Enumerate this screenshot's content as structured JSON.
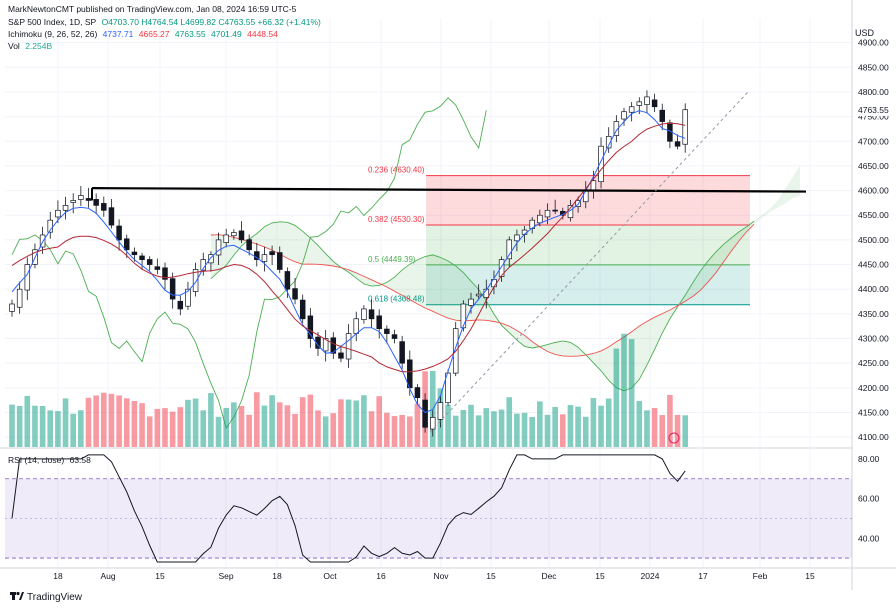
{
  "publisher": "MarkNewtonCMT published on TradingView.com, Jan 08, 2024 16:59 UTC-5",
  "legend": {
    "symbol": "S&P 500 Index, 1D, SP",
    "ohlc": "O4703.70 H4764.54 L4699.82 C4763.55 +66.32 (+1.41%)",
    "ichimoku_label": "Ichimoku (9, 26, 52, 26)",
    "ichimoku_values": [
      "4737.71",
      "4665.27",
      "4763.55",
      "4701.49",
      "4448.54"
    ],
    "vol_label": "Vol",
    "vol_value": "2.254B"
  },
  "currency": "USD",
  "last_price": "4763.55",
  "brand": "TradingView",
  "colors": {
    "up": "#089981",
    "down": "#f23645",
    "tenkan": "#2962ff",
    "kijun": "#b22833",
    "span_a": "#4caf50",
    "span_b": "#ef5350",
    "rsi": "#131722",
    "rsi_band": "#7e57c2"
  },
  "chart_data": [
    {
      "type": "candlestick",
      "title": "S&P 500 Index, 1D, SP",
      "y_ticks": [
        4100,
        4150,
        4200,
        4250,
        4300,
        4350,
        4400,
        4450,
        4500,
        4550,
        4600,
        4650,
        4700,
        4750,
        4800,
        4850,
        4900
      ],
      "ylim": [
        4080,
        4950
      ],
      "x_ticks": [
        "18",
        "Aug",
        "15",
        "Sep",
        "18",
        "Oct",
        "16",
        "Nov",
        "15",
        "Dec",
        "15",
        "2024",
        "17",
        "Feb",
        "15"
      ],
      "price_path": [
        4370,
        4400,
        4450,
        4480,
        4510,
        4540,
        4560,
        4570,
        4580,
        4590,
        4580,
        4570,
        4560,
        4530,
        4500,
        4480,
        4470,
        4460,
        4450,
        4440,
        4420,
        4380,
        4360,
        4400,
        4440,
        4460,
        4470,
        4500,
        4510,
        4515,
        4500,
        4480,
        4460,
        4470,
        4470,
        4440,
        4400,
        4380,
        4340,
        4300,
        4280,
        4300,
        4270,
        4260,
        4310,
        4340,
        4360,
        4340,
        4320,
        4310,
        4300,
        4250,
        4200,
        4180,
        4120,
        4140,
        4170,
        4230,
        4320,
        4370,
        4380,
        4390,
        4400,
        4420,
        4460,
        4500,
        4510,
        4520,
        4540,
        4550,
        4560,
        4560,
        4550,
        4570,
        4580,
        4600,
        4620,
        4690,
        4710,
        4740,
        4760,
        4770,
        4780,
        4790,
        4770,
        4740,
        4700,
        4690,
        4764
      ],
      "fib_levels": [
        {
          "ratio": "0.236 (4630.40)",
          "value": 4630.4
        },
        {
          "ratio": "0.382 (4530.30)",
          "value": 4530.3
        },
        {
          "ratio": "0.5 (4449.39)",
          "value": 4449.39
        },
        {
          "ratio": "0.618 (4368.48)",
          "value": 4368.48
        }
      ],
      "resistance_line": 4600
    },
    {
      "type": "line",
      "title": "RSI (14, close)",
      "value_label": "63.58",
      "y_ticks": [
        40.0,
        60.0,
        80.0
      ],
      "ylim": [
        25,
        85
      ],
      "band": [
        30,
        70
      ]
    }
  ]
}
